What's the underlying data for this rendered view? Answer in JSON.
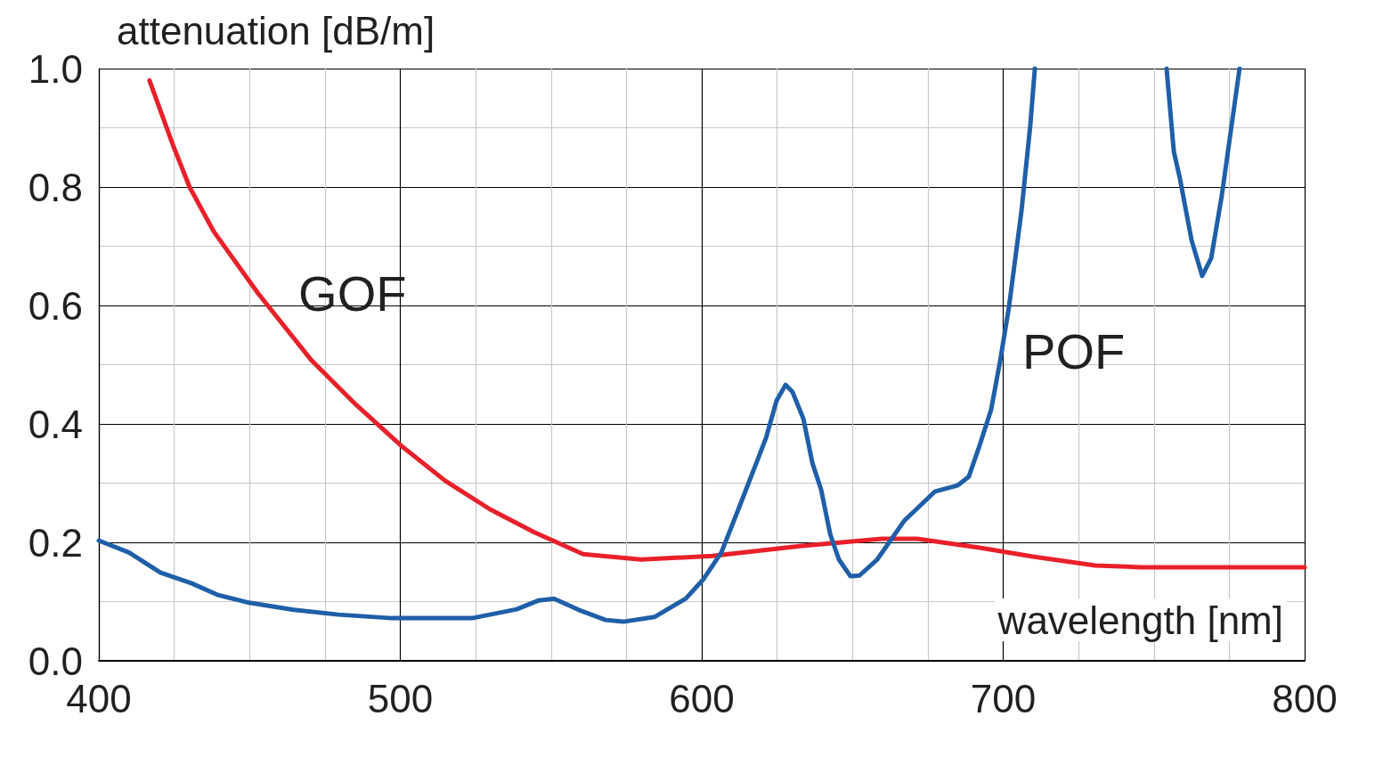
{
  "chart_data": {
    "type": "line",
    "xlabel": "wavelength [nm]",
    "ylabel": "attenuation [dB/m]",
    "xlim": [
      400,
      800
    ],
    "xticks": [
      400,
      500,
      600,
      700,
      800
    ],
    "ylim": [
      0,
      1.0
    ],
    "yticks": [
      {
        "value": 0,
        "label": "0.0"
      },
      {
        "value": 0.2,
        "label": "0.2"
      },
      {
        "value": 0.4,
        "label": "0.4"
      },
      {
        "value": 0.6,
        "label": "0.6"
      },
      {
        "value": 0.8,
        "label": "0.8"
      },
      {
        "value": 1.0,
        "label": "1.0"
      }
    ],
    "grid": true,
    "legend": false,
    "marker": "none",
    "line_style": "solid",
    "series": [
      {
        "name": "GOF",
        "color": "#e8202a",
        "x": [
          416.8,
          424.8,
          430.1,
          438.1,
          452.9,
          470.6,
          485.4,
          500.1,
          514.9,
          529.7,
          544.5,
          560.7,
          579.9,
          603.5,
          633.1,
          659.7,
          671.5,
          692.2,
          709.9,
          730.6,
          745.4,
          800
        ],
        "values": [
          0.98,
          0.868,
          0.8,
          0.725,
          0.62,
          0.507,
          0.432,
          0.364,
          0.304,
          0.256,
          0.217,
          0.18,
          0.171,
          0.177,
          0.194,
          0.206,
          0.206,
          0.191,
          0.176,
          0.161,
          0.158,
          0.158
        ]
      },
      {
        "name": "POF",
        "color": "#1f5fa8",
        "x": [
          400,
          410,
          420.4,
          430.7,
          439.6,
          449.9,
          464.7,
          479.5,
          497.2,
          523.8,
          538.6,
          545.9,
          551,
          559.2,
          568.1,
          574,
          584.3,
          594.7,
          600.6,
          606.5,
          612.4,
          621.3,
          624.8,
          627.8,
          630.1,
          633.7,
          636.7,
          639.6,
          642.6,
          645.5,
          649.3,
          652.3,
          658.2,
          667.1,
          677.4,
          684.8,
          688.6,
          692.2,
          696,
          699,
          701.9,
          706.1,
          709,
          710.5,
          732,
          754.2,
          756.6,
          758.6,
          762.5,
          766,
          769,
          772.5,
          778.4
        ],
        "values": [
          0.203,
          0.183,
          0.149,
          0.131,
          0.111,
          0.098,
          0.086,
          0.078,
          0.072,
          0.072,
          0.087,
          0.102,
          0.105,
          0.086,
          0.069,
          0.066,
          0.074,
          0.105,
          0.138,
          0.183,
          0.259,
          0.376,
          0.439,
          0.466,
          0.454,
          0.409,
          0.334,
          0.289,
          0.214,
          0.171,
          0.143,
          0.144,
          0.171,
          0.236,
          0.286,
          0.296,
          0.311,
          0.364,
          0.424,
          0.507,
          0.597,
          0.761,
          0.905,
          1.0,
          null,
          1.0,
          0.86,
          0.815,
          0.71,
          0.65,
          0.68,
          0.785,
          1.0
        ]
      }
    ]
  }
}
